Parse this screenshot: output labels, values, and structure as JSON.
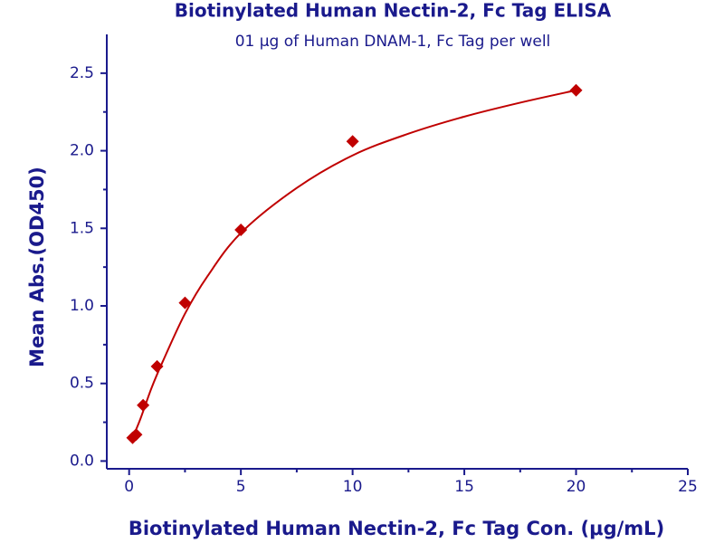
{
  "chart_data": {
    "type": "scatter",
    "title": "Biotinylated Human Nectin-2, Fc Tag ELISA",
    "subtitle": "01 μg of Human DNAM-1, Fc Tag per well",
    "x_label": "Biotinylated Human Nectin-2, Fc Tag Con. (μg/mL)",
    "y_label": "Mean Abs.(OD450)",
    "xlim": [
      -1,
      25
    ],
    "xticks": [
      0,
      5,
      10,
      15,
      20,
      25
    ],
    "xminorticks": [
      2.5,
      7.5,
      12.5,
      17.5,
      22.5
    ],
    "ylim": [
      -0.05,
      2.75
    ],
    "yticks": [
      {
        "value": 0,
        "label": "0.0"
      },
      0.5,
      {
        "value": 1,
        "label": "1.0"
      },
      1.5,
      {
        "value": 2,
        "label": "2.0"
      },
      2.5
    ],
    "yminorticks": [
      0.25,
      0.75,
      1.25,
      1.75,
      2.25
    ],
    "series": [
      {
        "color": "#c00000",
        "x": [
          0.156,
          0.3125,
          0.625,
          1.25,
          2.5,
          5,
          10,
          20
        ],
        "values": [
          0.15,
          0.17,
          0.36,
          0.61,
          1.02,
          1.49,
          2.06,
          2.39
        ]
      }
    ],
    "fit": {
      "color": "#c00000",
      "x": [
        0.156,
        0.5,
        1,
        1.5,
        2.5,
        3.5,
        5,
        7.5,
        10,
        12.5,
        15,
        17.5,
        20
      ],
      "values": [
        0.15,
        0.27,
        0.47,
        0.64,
        0.95,
        1.19,
        1.47,
        1.76,
        1.97,
        2.11,
        2.22,
        2.31,
        2.39
      ]
    },
    "axis_color": "#1a1a8c"
  }
}
